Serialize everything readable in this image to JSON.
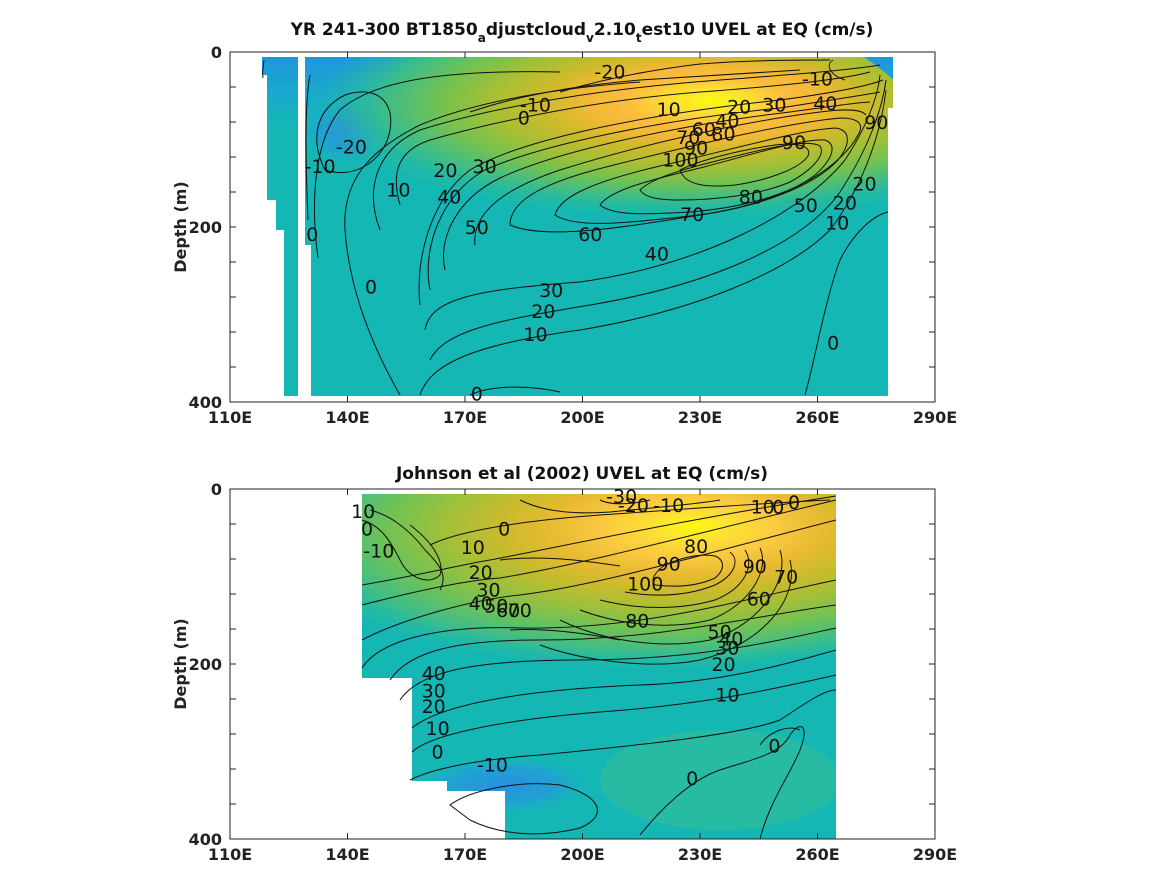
{
  "chart_data": [
    {
      "type": "heatmap",
      "title_parts": [
        {
          "text": "YR 241-300 BT1850",
          "sub": false
        },
        {
          "text": "a",
          "sub": true
        },
        {
          "text": "djustcloud",
          "sub": false
        },
        {
          "text": "v",
          "sub": true
        },
        {
          "text": "2.10",
          "sub": false
        },
        {
          "text": "t",
          "sub": true
        },
        {
          "text": "est10 UVEL at EQ (cm/s)",
          "sub": false
        }
      ],
      "xlabel": "",
      "ylabel": "Depth (m)",
      "xlim": [
        110,
        290
      ],
      "ylim": [
        0,
        400
      ],
      "y_reversed": true,
      "x_ticks": [
        110,
        140,
        170,
        200,
        230,
        260,
        290
      ],
      "x_tick_labels": [
        "110E",
        "140E",
        "170E",
        "200E",
        "230E",
        "260E",
        "290E"
      ],
      "y_ticks": [
        0,
        200,
        400
      ],
      "y_tick_labels": [
        "0",
        "200",
        "400"
      ],
      "colormap": "parula",
      "color_range": [
        -30,
        110
      ],
      "core": {
        "lon": 232,
        "depth": 120,
        "max_value": 105
      },
      "contour_levels": [
        -20,
        -10,
        0,
        10,
        20,
        30,
        40,
        50,
        60,
        70,
        80,
        90,
        100
      ],
      "contour_labels": [
        {
          "text": "-20",
          "lon": 207,
          "depth": 22
        },
        {
          "text": "-10",
          "lon": 260,
          "depth": 30
        },
        {
          "text": "-10",
          "lon": 188,
          "depth": 60
        },
        {
          "text": "0",
          "lon": 185,
          "depth": 75
        },
        {
          "text": "10",
          "lon": 222,
          "depth": 65
        },
        {
          "text": "20",
          "lon": 240,
          "depth": 62
        },
        {
          "text": "30",
          "lon": 249,
          "depth": 60
        },
        {
          "text": "40",
          "lon": 262,
          "depth": 58
        },
        {
          "text": "90",
          "lon": 275,
          "depth": 80
        },
        {
          "text": "-20",
          "lon": 141,
          "depth": 108
        },
        {
          "text": "-10",
          "lon": 133,
          "depth": 130
        },
        {
          "text": "70",
          "lon": 227,
          "depth": 97
        },
        {
          "text": "60",
          "lon": 231,
          "depth": 88
        },
        {
          "text": "40",
          "lon": 237,
          "depth": 78
        },
        {
          "text": "90",
          "lon": 229,
          "depth": 109
        },
        {
          "text": "80",
          "lon": 236,
          "depth": 93
        },
        {
          "text": "100",
          "lon": 225,
          "depth": 123
        },
        {
          "text": "90",
          "lon": 254,
          "depth": 103
        },
        {
          "text": "20",
          "lon": 165,
          "depth": 135
        },
        {
          "text": "30",
          "lon": 175,
          "depth": 130
        },
        {
          "text": "10",
          "lon": 153,
          "depth": 157
        },
        {
          "text": "40",
          "lon": 166,
          "depth": 165
        },
        {
          "text": "80",
          "lon": 243,
          "depth": 165
        },
        {
          "text": "70",
          "lon": 228,
          "depth": 185
        },
        {
          "text": "50",
          "lon": 257,
          "depth": 175
        },
        {
          "text": "20",
          "lon": 272,
          "depth": 150
        },
        {
          "text": "20",
          "lon": 267,
          "depth": 172
        },
        {
          "text": "10",
          "lon": 265,
          "depth": 195
        },
        {
          "text": "50",
          "lon": 173,
          "depth": 200
        },
        {
          "text": "60",
          "lon": 202,
          "depth": 208
        },
        {
          "text": "0",
          "lon": 131,
          "depth": 208
        },
        {
          "text": "40",
          "lon": 219,
          "depth": 230
        },
        {
          "text": "30",
          "lon": 192,
          "depth": 272
        },
        {
          "text": "0",
          "lon": 146,
          "depth": 268
        },
        {
          "text": "20",
          "lon": 190,
          "depth": 296
        },
        {
          "text": "10",
          "lon": 188,
          "depth": 322
        },
        {
          "text": "0",
          "lon": 264,
          "depth": 332
        },
        {
          "text": "0",
          "lon": 173,
          "depth": 390
        }
      ]
    },
    {
      "type": "heatmap",
      "title_parts": [
        {
          "text": "Johnson et al (2002) UVEL at EQ (cm/s)",
          "sub": false
        }
      ],
      "xlabel": "",
      "ylabel": "Depth (m)",
      "xlim": [
        110,
        290
      ],
      "ylim": [
        0,
        400
      ],
      "y_reversed": true,
      "x_ticks": [
        110,
        140,
        170,
        200,
        230,
        260,
        290
      ],
      "x_tick_labels": [
        "110E",
        "140E",
        "170E",
        "200E",
        "230E",
        "260E",
        "290E"
      ],
      "y_ticks": [
        0,
        200,
        400
      ],
      "y_tick_labels": [
        "0",
        "200",
        "400"
      ],
      "colormap": "parula",
      "color_range": [
        -30,
        110
      ],
      "core": {
        "lon": 230,
        "depth": 110,
        "max_value": 105
      },
      "contour_levels": [
        -30,
        -20,
        -10,
        0,
        10,
        20,
        30,
        40,
        50,
        60,
        70,
        80,
        90,
        100
      ],
      "contour_labels": [
        {
          "text": "-30",
          "lon": 210,
          "depth": 8
        },
        {
          "text": "-20",
          "lon": 213,
          "depth": 18
        },
        {
          "text": "-10",
          "lon": 222,
          "depth": 18
        },
        {
          "text": "10",
          "lon": 246,
          "depth": 20
        },
        {
          "text": "0",
          "lon": 254,
          "depth": 15
        },
        {
          "text": "10",
          "lon": 144,
          "depth": 25
        },
        {
          "text": "0",
          "lon": 145,
          "depth": 45
        },
        {
          "text": "-10",
          "lon": 148,
          "depth": 70
        },
        {
          "text": "0",
          "lon": 180,
          "depth": 45
        },
        {
          "text": "10",
          "lon": 172,
          "depth": 66
        },
        {
          "text": "20",
          "lon": 174,
          "depth": 95
        },
        {
          "text": "30",
          "lon": 176,
          "depth": 115
        },
        {
          "text": "40",
          "lon": 174,
          "depth": 130
        },
        {
          "text": "50",
          "lon": 178,
          "depth": 133
        },
        {
          "text": "60",
          "lon": 181,
          "depth": 138
        },
        {
          "text": "70",
          "lon": 184,
          "depth": 138
        },
        {
          "text": "100",
          "lon": 216,
          "depth": 108
        },
        {
          "text": "90",
          "lon": 222,
          "depth": 85
        },
        {
          "text": "80",
          "lon": 229,
          "depth": 65
        },
        {
          "text": "90",
          "lon": 244,
          "depth": 88
        },
        {
          "text": "70",
          "lon": 252,
          "depth": 100
        },
        {
          "text": "60",
          "lon": 245,
          "depth": 125
        },
        {
          "text": "80",
          "lon": 214,
          "depth": 150
        },
        {
          "text": "50",
          "lon": 235,
          "depth": 163
        },
        {
          "text": "40",
          "lon": 238,
          "depth": 171
        },
        {
          "text": "30",
          "lon": 237,
          "depth": 181
        },
        {
          "text": "20",
          "lon": 236,
          "depth": 200
        },
        {
          "text": "10",
          "lon": 237,
          "depth": 235
        },
        {
          "text": "40",
          "lon": 162,
          "depth": 210
        },
        {
          "text": "30",
          "lon": 162,
          "depth": 230
        },
        {
          "text": "20",
          "lon": 162,
          "depth": 248
        },
        {
          "text": "10",
          "lon": 163,
          "depth": 273
        },
        {
          "text": "0",
          "lon": 163,
          "depth": 300
        },
        {
          "text": "-10",
          "lon": 177,
          "depth": 315
        },
        {
          "text": "0",
          "lon": 228,
          "depth": 330
        },
        {
          "text": "0",
          "lon": 249,
          "depth": 293
        },
        {
          "text": "0",
          "lon": 250,
          "depth": 20
        }
      ]
    }
  ]
}
